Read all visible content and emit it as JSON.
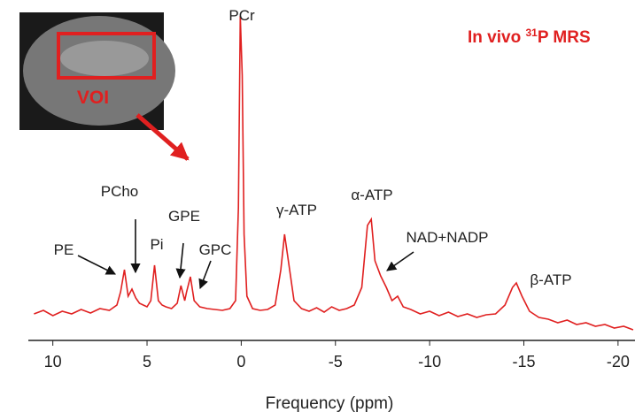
{
  "chart_data": {
    "type": "line",
    "title": [
      "In vivo ",
      "31",
      "P MRS"
    ],
    "xlabel": "Frequency (ppm)",
    "inset_label": "VOI",
    "annotations": [
      "PCr",
      "PE",
      "PCho",
      "Pi",
      "GPE",
      "GPC",
      "γ-ATP",
      "α-ATP",
      "NAD+NADP",
      "β-ATP"
    ],
    "xlim": [
      11.3,
      -20.9
    ],
    "ylim": [
      0,
      385
    ],
    "xticks": [
      10,
      5,
      0,
      -5,
      -10,
      -15,
      -20
    ],
    "series": [
      {
        "color": "#e02020",
        "x": [
          11,
          10.5,
          10,
          9.5,
          9,
          8.5,
          8,
          7.5,
          7,
          6.6,
          6.4,
          6.2,
          6.0,
          5.8,
          5.6,
          5.4,
          5.2,
          5.0,
          4.8,
          4.6,
          4.4,
          4.2,
          4.0,
          3.7,
          3.4,
          3.2,
          3.0,
          2.9,
          2.7,
          2.5,
          2.2,
          1.8,
          1.4,
          1.0,
          0.6,
          0.3,
          0.15,
          0.05,
          -0.05,
          -0.15,
          -0.3,
          -0.6,
          -1.0,
          -1.4,
          -1.8,
          -2.1,
          -2.3,
          -2.5,
          -2.8,
          -3.2,
          -3.6,
          -4.0,
          -4.4,
          -4.8,
          -5.2,
          -5.6,
          -6.0,
          -6.4,
          -6.7,
          -6.9,
          -7.1,
          -7.4,
          -7.7,
          -8.0,
          -8.3,
          -8.6,
          -9.0,
          -9.5,
          -10,
          -10.5,
          -11,
          -11.5,
          -12,
          -12.5,
          -13,
          -13.5,
          -14,
          -14.4,
          -14.6,
          -14.9,
          -15.3,
          -15.8,
          -16.3,
          -16.8,
          -17.3,
          -17.8,
          -18.3,
          -18.8,
          -19.3,
          -19.8,
          -20.3,
          -20.8
        ],
        "values": [
          30,
          34,
          28,
          33,
          30,
          35,
          31,
          36,
          34,
          40,
          55,
          80,
          50,
          58,
          48,
          42,
          40,
          38,
          45,
          85,
          45,
          40,
          38,
          36,
          42,
          62,
          45,
          55,
          72,
          45,
          38,
          36,
          35,
          34,
          36,
          45,
          150,
          367,
          300,
          120,
          50,
          36,
          34,
          35,
          40,
          80,
          120,
          90,
          45,
          36,
          33,
          37,
          32,
          38,
          34,
          36,
          40,
          60,
          130,
          137,
          90,
          73,
          60,
          45,
          50,
          38,
          35,
          30,
          33,
          28,
          32,
          27,
          30,
          26,
          29,
          30,
          40,
          60,
          65,
          50,
          33,
          26,
          24,
          20,
          23,
          18,
          20,
          16,
          18,
          14,
          16,
          12
        ]
      }
    ]
  }
}
